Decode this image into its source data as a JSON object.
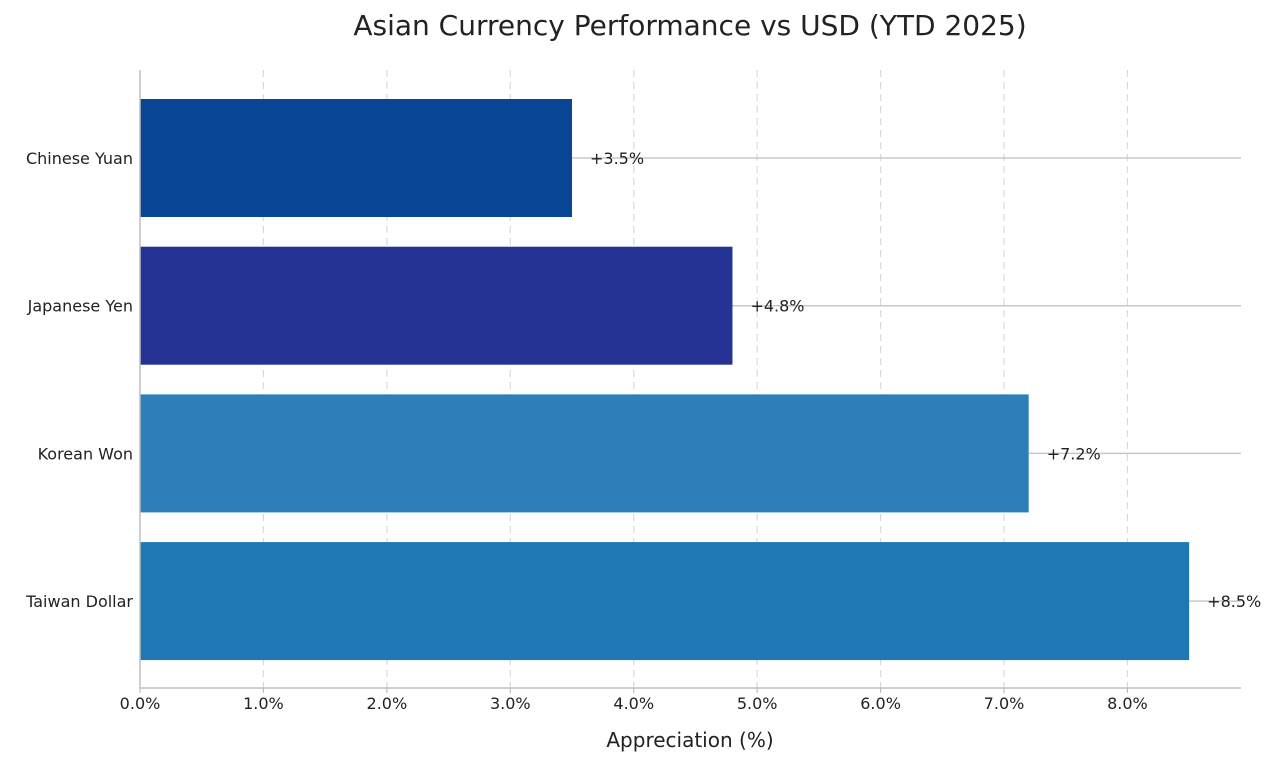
{
  "chart_data": {
    "type": "bar",
    "orientation": "horizontal",
    "title": "Asian Currency Performance vs USD (YTD 2025)",
    "xlabel": "Appreciation (%)",
    "ylabel": "",
    "xlim": [
      0,
      8.92
    ],
    "xticks": [
      0,
      1,
      2,
      3,
      4,
      5,
      6,
      7,
      8
    ],
    "xtick_labels": [
      "0.0%",
      "1.0%",
      "2.0%",
      "3.0%",
      "4.0%",
      "5.0%",
      "6.0%",
      "7.0%",
      "8.0%"
    ],
    "grid": "vertical dashed",
    "categories": [
      "Chinese Yuan",
      "Japanese Yen",
      "Korean Won",
      "Taiwan Dollar"
    ],
    "values": [
      3.5,
      4.8,
      7.2,
      8.5
    ],
    "data_labels": [
      "+3.5%",
      "+4.8%",
      "+7.2%",
      "+8.5%"
    ],
    "colors": [
      "#084594",
      "#253494",
      "#2c7fb8",
      "#1f77b4"
    ]
  }
}
